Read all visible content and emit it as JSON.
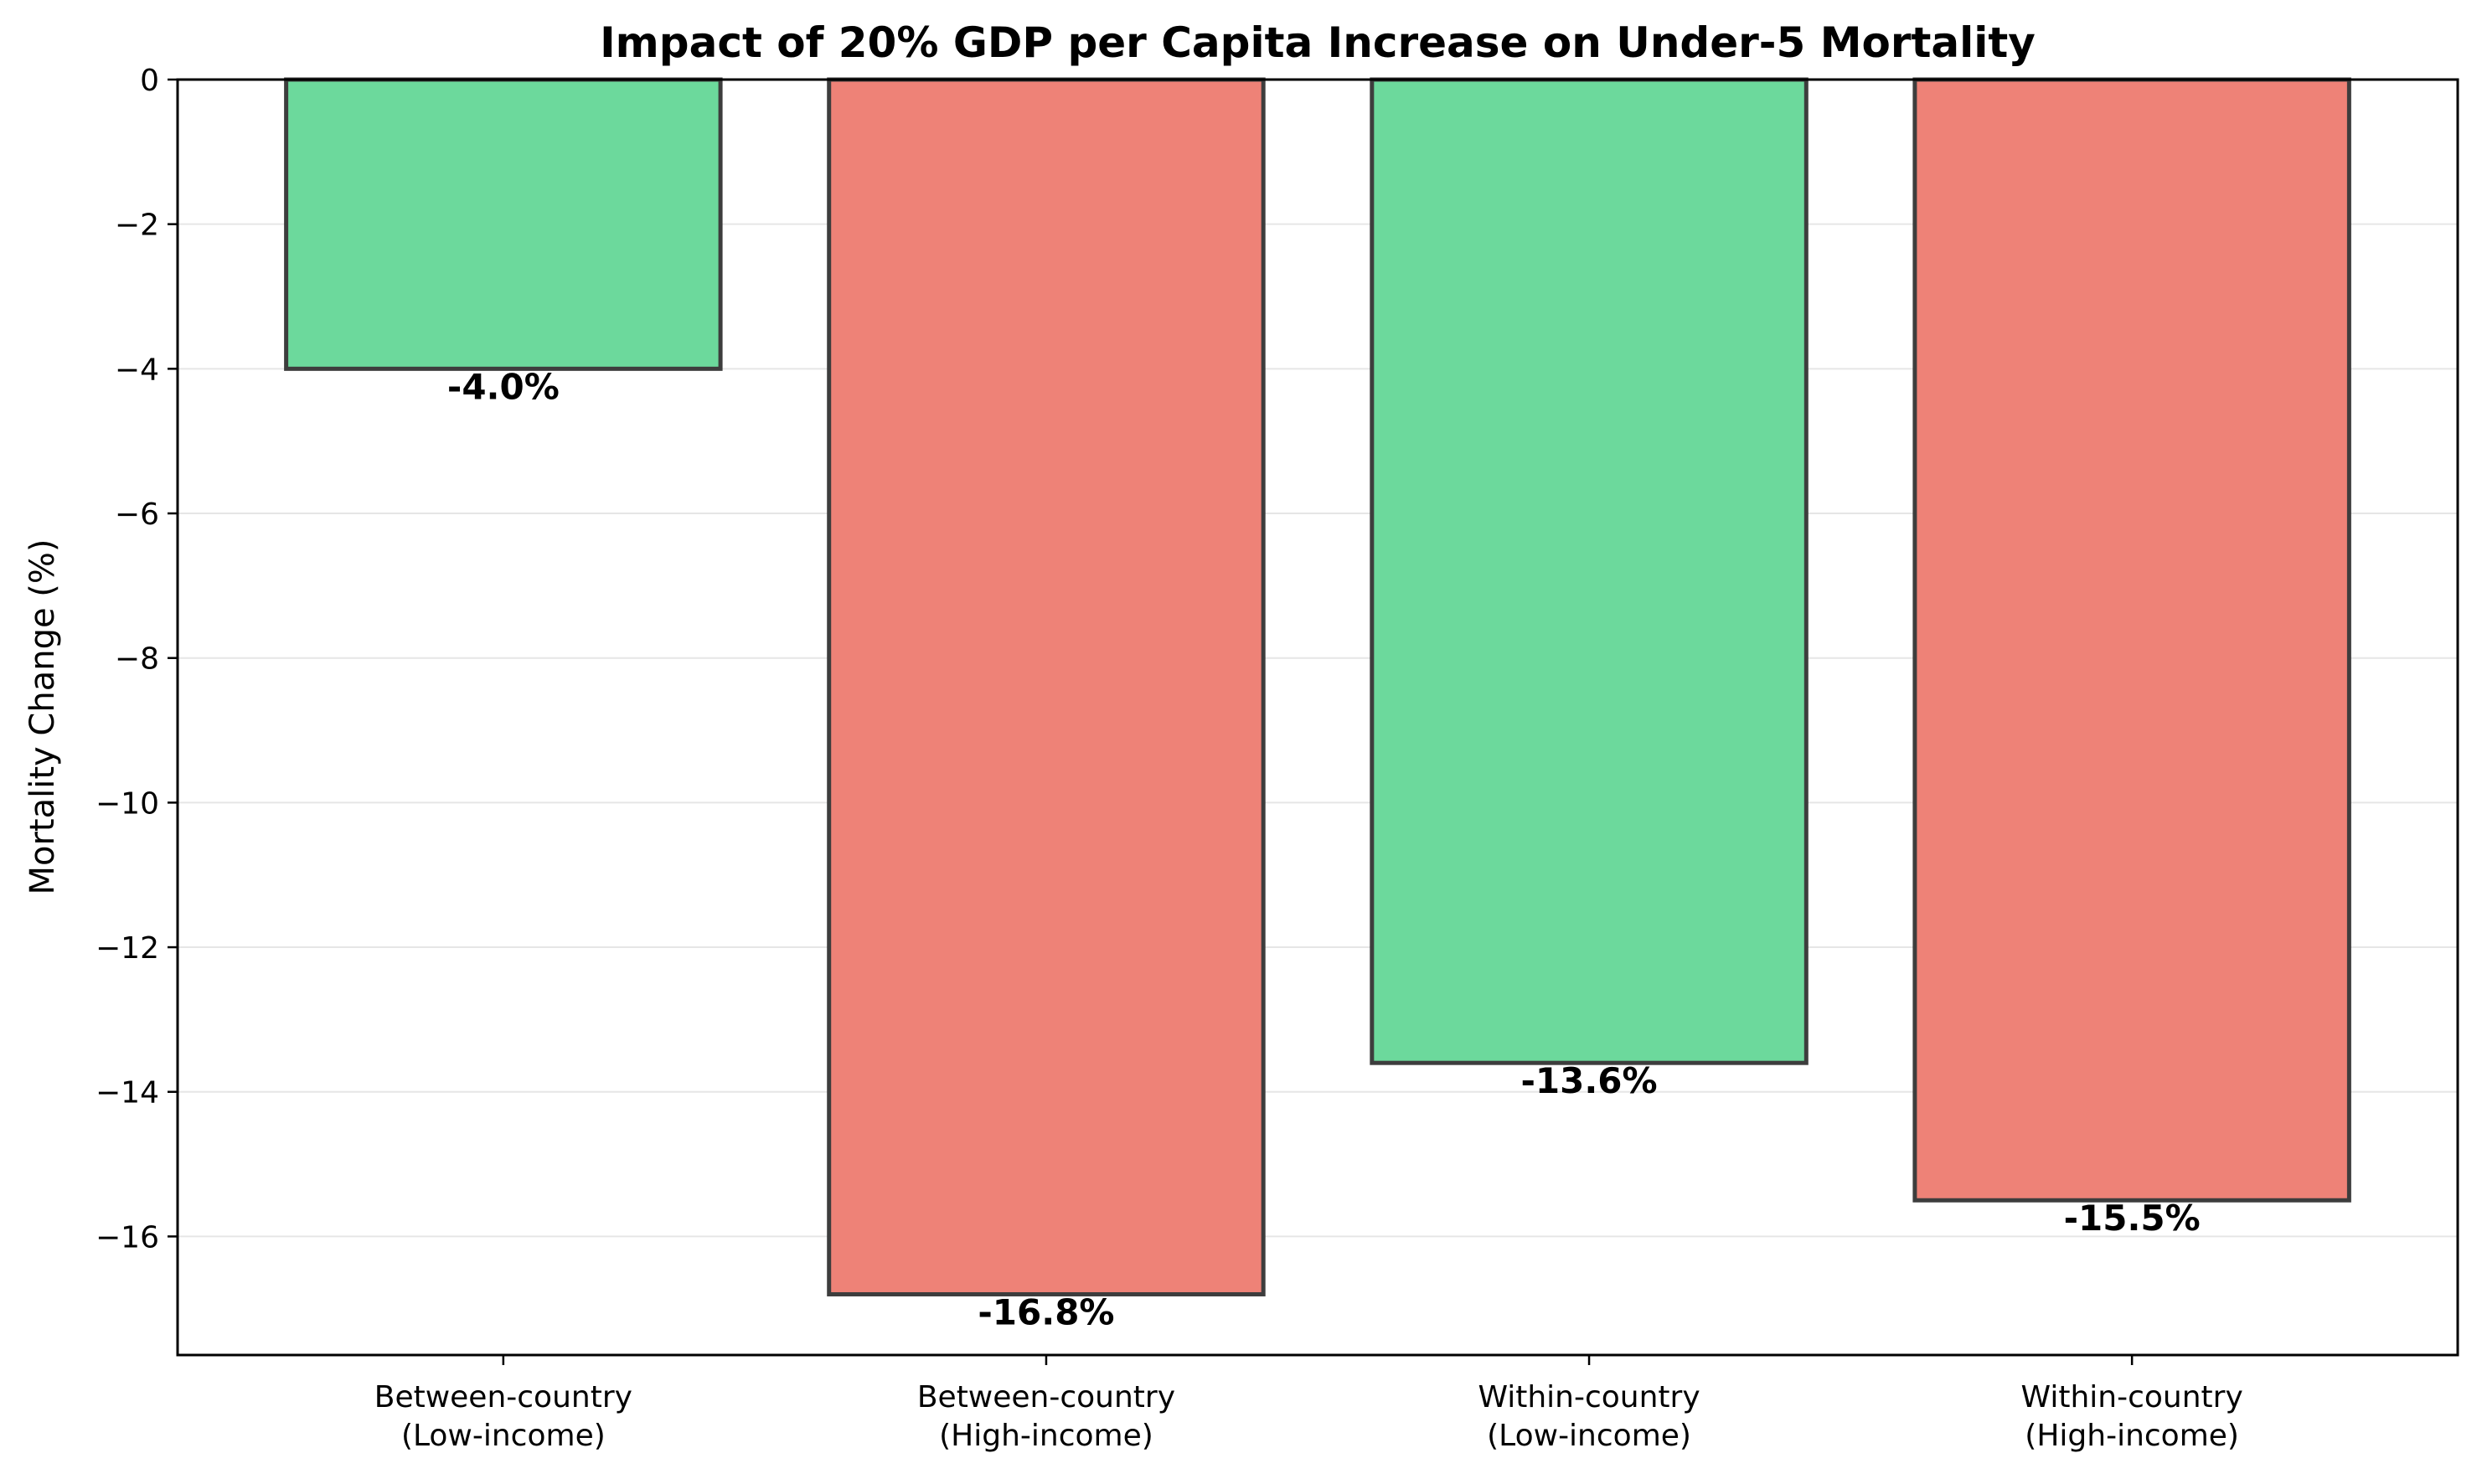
{
  "chart_data": {
    "type": "bar",
    "title": "Impact of 20% GDP per Capita Increase on Under-5 Mortality",
    "xlabel": "",
    "ylabel": "Mortality Change (%)",
    "categories": [
      [
        "Between-country",
        "(Low-income)"
      ],
      [
        "Between-country",
        "(High-income)"
      ],
      [
        "Within-country",
        "(Low-income)"
      ],
      [
        "Within-country",
        "(High-income)"
      ]
    ],
    "values": [
      -4.0,
      -16.8,
      -13.6,
      -15.5
    ],
    "value_labels": [
      "-4.0%",
      "-16.8%",
      "-13.6%",
      "-15.5%"
    ],
    "bar_colors": [
      "#6cd99c",
      "#ee8277",
      "#6cd99c",
      "#ee8277"
    ],
    "bar_edge_color": "#3d3d3d",
    "ylim": [
      -17.64,
      0
    ],
    "yticks": [
      0,
      -2,
      -4,
      -6,
      -8,
      -10,
      -12,
      -14,
      -16
    ],
    "ytick_labels": [
      "0",
      "−2",
      "−4",
      "−6",
      "−8",
      "−10",
      "−12",
      "−14",
      "−16"
    ],
    "grid": "horizontal",
    "legend": "none"
  }
}
